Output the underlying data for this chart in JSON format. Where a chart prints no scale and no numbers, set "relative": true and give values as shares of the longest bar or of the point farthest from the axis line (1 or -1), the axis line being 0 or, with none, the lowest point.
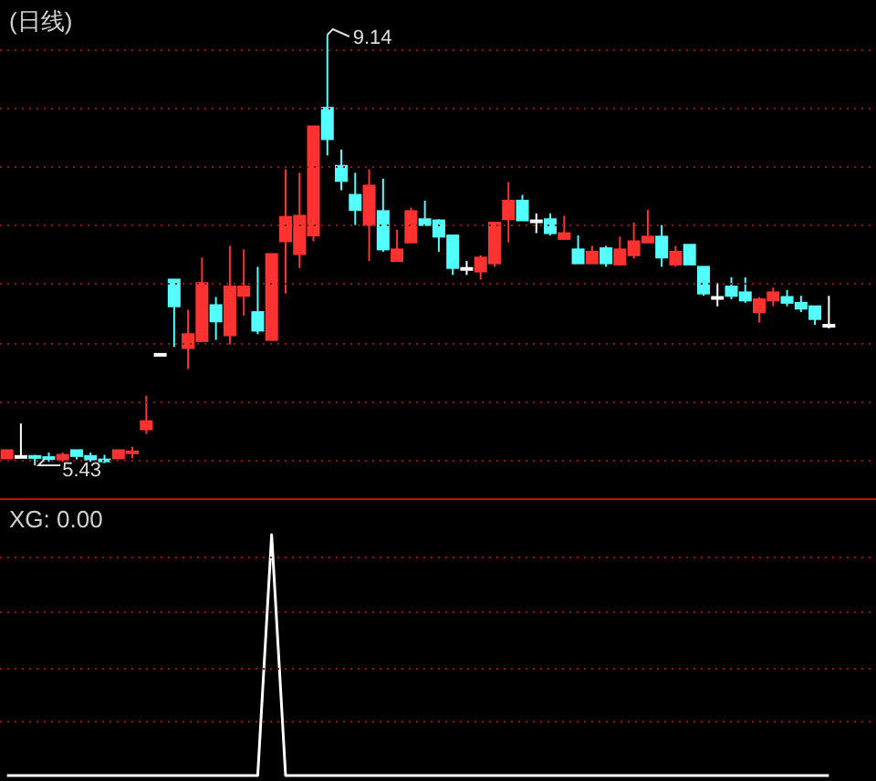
{
  "chart_data": [
    {
      "type": "candlestick",
      "title": "(日线)",
      "grid": true,
      "categories": [
        null,
        null,
        null,
        null,
        null,
        null,
        null,
        null,
        null,
        null,
        null,
        null,
        null,
        null,
        null,
        null,
        null,
        null,
        null,
        null,
        null,
        null,
        null,
        null,
        null,
        null,
        null,
        null,
        null,
        null,
        null,
        null,
        null,
        null,
        null,
        null,
        null,
        null,
        null,
        null,
        null,
        null,
        null,
        null,
        null,
        null,
        null,
        null,
        null,
        null,
        null,
        null,
        null,
        null,
        null,
        null,
        null,
        null,
        null,
        null
      ],
      "ohlc": [
        [
          5.49,
          5.56,
          5.49,
          5.56
        ],
        [
          5.51,
          5.79,
          5.51,
          5.51
        ],
        [
          5.51,
          5.52,
          5.43,
          5.5
        ],
        [
          5.5,
          5.54,
          5.46,
          5.49
        ],
        [
          5.48,
          5.54,
          5.46,
          5.52
        ],
        [
          5.56,
          5.56,
          5.48,
          5.51
        ],
        [
          5.51,
          5.54,
          5.46,
          5.48
        ],
        [
          5.48,
          5.52,
          5.45,
          5.47
        ],
        [
          5.49,
          5.56,
          5.49,
          5.56
        ],
        [
          5.54,
          5.59,
          5.49,
          5.55
        ],
        [
          5.74,
          6.03,
          5.7,
          5.81
        ],
        [
          6.39,
          6.39,
          6.39,
          6.39
        ],
        [
          7.03,
          7.03,
          6.45,
          6.8
        ],
        [
          6.44,
          6.77,
          6.26,
          6.56
        ],
        [
          6.5,
          7.22,
          6.5,
          7.0
        ],
        [
          6.81,
          6.88,
          6.51,
          6.67
        ],
        [
          6.55,
          7.32,
          6.47,
          6.97
        ],
        [
          6.89,
          7.29,
          6.72,
          6.97
        ],
        [
          6.75,
          7.14,
          6.56,
          6.59
        ],
        [
          6.51,
          7.25,
          6.51,
          7.25
        ],
        [
          7.36,
          7.98,
          6.91,
          7.57
        ],
        [
          7.25,
          7.95,
          7.13,
          7.58
        ],
        [
          7.41,
          8.35,
          7.36,
          8.35
        ],
        [
          8.51,
          9.14,
          8.1,
          8.24
        ],
        [
          8.01,
          8.15,
          7.8,
          7.88
        ],
        [
          7.76,
          7.95,
          7.5,
          7.63
        ],
        [
          7.5,
          7.98,
          7.19,
          7.84
        ],
        [
          7.62,
          7.9,
          7.27,
          7.29
        ],
        [
          7.19,
          7.46,
          7.19,
          7.29
        ],
        [
          7.35,
          7.65,
          7.35,
          7.62
        ],
        [
          7.55,
          7.71,
          7.49,
          7.5
        ],
        [
          7.54,
          7.55,
          7.27,
          7.4
        ],
        [
          7.41,
          7.41,
          7.07,
          7.13
        ],
        [
          7.13,
          7.19,
          7.07,
          7.13
        ],
        [
          7.1,
          7.24,
          7.03,
          7.22
        ],
        [
          7.17,
          7.52,
          7.14,
          7.52
        ],
        [
          7.55,
          7.87,
          7.35,
          7.71
        ],
        [
          7.71,
          7.76,
          7.54,
          7.54
        ],
        [
          7.54,
          7.6,
          7.43,
          7.54
        ],
        [
          7.55,
          7.6,
          7.41,
          7.43
        ],
        [
          7.38,
          7.58,
          7.38,
          7.43
        ],
        [
          7.29,
          7.41,
          7.17,
          7.17
        ],
        [
          7.17,
          7.32,
          7.17,
          7.27
        ],
        [
          7.3,
          7.32,
          7.14,
          7.17
        ],
        [
          7.16,
          7.4,
          7.16,
          7.29
        ],
        [
          7.24,
          7.52,
          7.21,
          7.36
        ],
        [
          7.35,
          7.63,
          7.35,
          7.4
        ],
        [
          7.4,
          7.5,
          7.14,
          7.22
        ],
        [
          7.16,
          7.32,
          7.14,
          7.27
        ],
        [
          7.33,
          7.33,
          7.16,
          7.16
        ],
        [
          7.14,
          7.14,
          6.89,
          6.91
        ],
        [
          6.88,
          7.0,
          6.8,
          6.88
        ],
        [
          6.97,
          7.05,
          6.86,
          6.89
        ],
        [
          6.92,
          7.05,
          6.83,
          6.85
        ],
        [
          6.75,
          6.88,
          6.66,
          6.86
        ],
        [
          6.85,
          6.96,
          6.8,
          6.92
        ],
        [
          6.88,
          6.94,
          6.8,
          6.83
        ],
        [
          6.83,
          6.89,
          6.75,
          6.78
        ],
        [
          6.8,
          6.8,
          6.64,
          6.69
        ],
        [
          6.64,
          6.89,
          6.61,
          6.64
        ]
      ],
      "yticks": [
        {
          "value": 9.01,
          "label": null
        },
        {
          "value": 8.51,
          "label": null
        },
        {
          "value": 8.01,
          "label": null
        },
        {
          "value": 7.5,
          "label": null
        },
        {
          "value": 7.0,
          "label": null
        },
        {
          "value": 6.48,
          "label": null
        },
        {
          "value": 5.98,
          "label": null
        },
        {
          "value": 5.48,
          "label": null
        }
      ],
      "annotations": [
        "9.14",
        "5.43"
      ]
    },
    {
      "type": "line",
      "title": "XG: 0.00",
      "relative": true,
      "ref_lines": [
        {
          "axis": "y",
          "value": 0.91,
          "color": "#8a1a1a",
          "line_style": "dotted"
        },
        {
          "axis": "y",
          "value": 0.68,
          "color": "#8a1a1a",
          "line_style": "dotted"
        },
        {
          "axis": "y",
          "value": 0.45,
          "color": "#8a1a1a",
          "line_style": "dotted"
        },
        {
          "axis": "y",
          "value": 0.23,
          "color": "#8a1a1a",
          "line_style": "dotted"
        }
      ],
      "categories": [
        null,
        null,
        null,
        null,
        null,
        null,
        null,
        null,
        null,
        null,
        null,
        null,
        null,
        null,
        null,
        null,
        null,
        null,
        null,
        null,
        null,
        null,
        null,
        null,
        null,
        null,
        null,
        null,
        null,
        null,
        null,
        null,
        null,
        null,
        null,
        null,
        null,
        null,
        null,
        null,
        null,
        null,
        null,
        null,
        null,
        null,
        null,
        null,
        null,
        null,
        null,
        null,
        null,
        null,
        null,
        null,
        null,
        null,
        null,
        null
      ],
      "series": [
        {
          "color": "#ffffff",
          "values": [
            0,
            0,
            0,
            0,
            0,
            0,
            0,
            0,
            0,
            0,
            0,
            0,
            0,
            0,
            0,
            0,
            0,
            0,
            0,
            1,
            0,
            0,
            0,
            0,
            0,
            0,
            0,
            0,
            0,
            0,
            0,
            0,
            0,
            0,
            0,
            0,
            0,
            0,
            0,
            0,
            0,
            0,
            0,
            0,
            0,
            0,
            0,
            0,
            0,
            0,
            0,
            0,
            0,
            0,
            0,
            0,
            0,
            0,
            0,
            0
          ]
        }
      ]
    }
  ]
}
